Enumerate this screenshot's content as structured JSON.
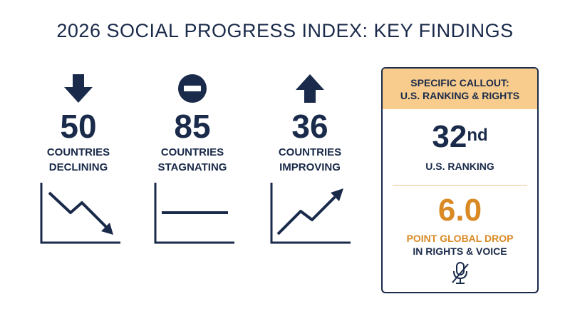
{
  "title": "2026 SOCIAL PROGRESS INDEX: KEY FINDINGS",
  "stats": [
    {
      "value": "50",
      "line1": "COUNTRIES",
      "line2": "DECLINING",
      "icon": "arrow-down-icon",
      "trend": "declining"
    },
    {
      "value": "85",
      "line1": "COUNTRIES",
      "line2": "STAGNATING",
      "icon": "minus-circle-icon",
      "trend": "flat"
    },
    {
      "value": "36",
      "line1": "COUNTRIES",
      "line2": "IMPROVING",
      "icon": "arrow-up-icon",
      "trend": "improving"
    }
  ],
  "callout": {
    "header_line1": "SPECIFIC CALLOUT:",
    "header_line2": "U.S. RANKING & RIGHTS",
    "rank_number": "32",
    "rank_suffix": "nd",
    "rank_label": "U.S. RANKING",
    "drop_value": "6.0",
    "drop_label1": "POINT GLOBAL DROP",
    "drop_label2": "IN RIGHTS & VOICE",
    "icon": "muted-microphone-icon"
  },
  "colors": {
    "navy": "#1a2a4a",
    "orange": "#d98a24",
    "callout_header": "#f8cc8c"
  }
}
